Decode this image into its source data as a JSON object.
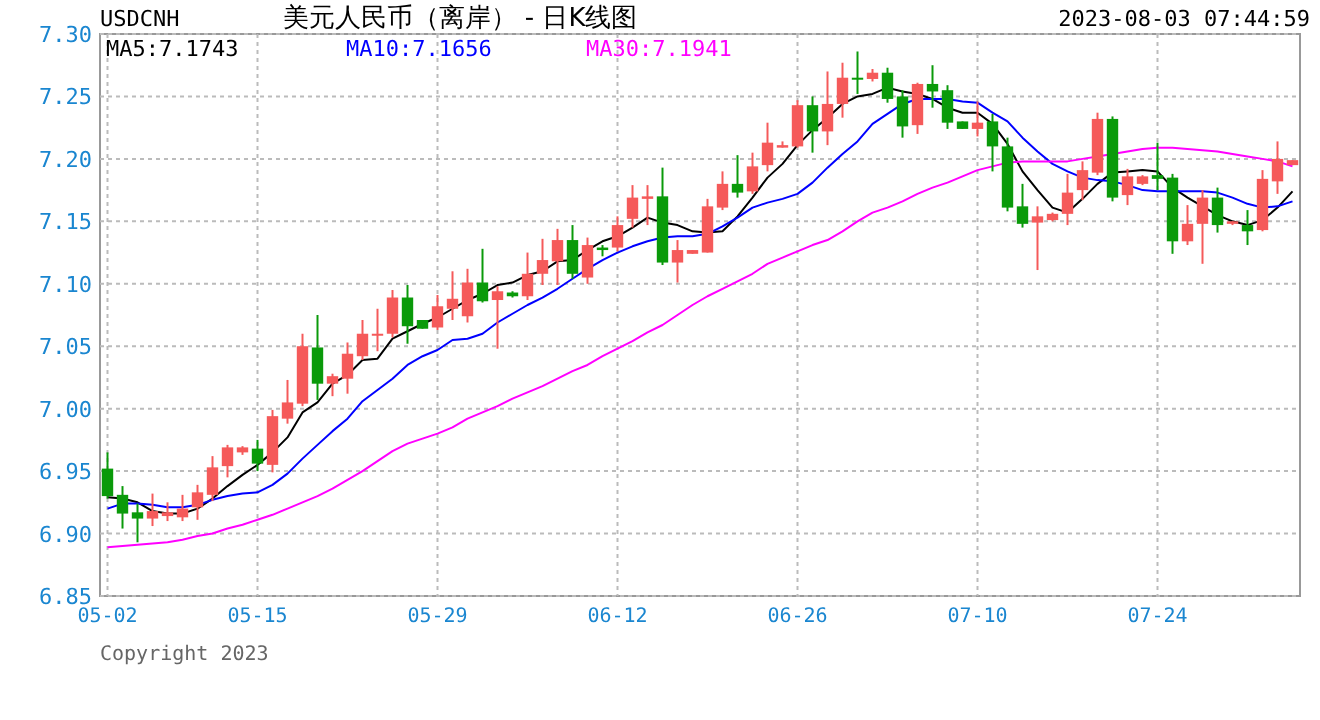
{
  "chart_data": {
    "type": "candlestick",
    "title": "美元人民币（离岸） - 日K线图",
    "annotations": [
      "USDCNH",
      "2023-08-03 07:44:59",
      "Copyright 2023"
    ],
    "categories": [
      "05-02",
      null,
      null,
      null,
      null,
      null,
      null,
      null,
      null,
      null,
      "05-15",
      null,
      null,
      null,
      null,
      null,
      null,
      null,
      null,
      null,
      null,
      null,
      "05-29",
      null,
      null,
      null,
      null,
      null,
      null,
      null,
      null,
      null,
      null,
      null,
      "06-12",
      null,
      null,
      null,
      null,
      null,
      null,
      null,
      null,
      null,
      null,
      null,
      "06-26",
      null,
      null,
      null,
      null,
      null,
      null,
      null,
      null,
      null,
      null,
      null,
      "07-10",
      null,
      null,
      null,
      null,
      null,
      null,
      null,
      null,
      null,
      null,
      null,
      "07-24",
      null,
      null,
      null,
      null,
      null,
      null,
      null,
      null,
      null
    ],
    "ohlc": [
      [
        6.952,
        6.965,
        6.928,
        6.93
      ],
      [
        6.931,
        6.938,
        6.904,
        6.916
      ],
      [
        6.917,
        6.924,
        6.893,
        6.912
      ],
      [
        6.912,
        6.932,
        6.906,
        6.918
      ],
      [
        6.914,
        6.925,
        6.91,
        6.917
      ],
      [
        6.913,
        6.931,
        6.91,
        6.92
      ],
      [
        6.921,
        6.939,
        6.911,
        6.933
      ],
      [
        6.931,
        6.962,
        6.926,
        6.953
      ],
      [
        6.954,
        6.971,
        6.945,
        6.969
      ],
      [
        6.965,
        6.97,
        6.963,
        6.969
      ],
      [
        6.968,
        6.975,
        6.95,
        6.956
      ],
      [
        6.955,
        6.999,
        6.949,
        6.994
      ],
      [
        6.992,
        7.023,
        6.988,
        7.005
      ],
      [
        7.004,
        7.06,
        7.002,
        7.05
      ],
      [
        7.049,
        7.075,
        7.007,
        7.02
      ],
      [
        7.02,
        7.028,
        7.01,
        7.026
      ],
      [
        7.024,
        7.053,
        7.012,
        7.044
      ],
      [
        7.042,
        7.071,
        7.039,
        7.06
      ],
      [
        7.059,
        7.08,
        7.046,
        7.06
      ],
      [
        7.06,
        7.095,
        7.057,
        7.089
      ],
      [
        7.089,
        7.099,
        7.052,
        7.066
      ],
      [
        7.071,
        7.071,
        7.064,
        7.064
      ],
      [
        7.065,
        7.091,
        7.063,
        7.082
      ],
      [
        7.08,
        7.11,
        7.071,
        7.088
      ],
      [
        7.074,
        7.112,
        7.069,
        7.101
      ],
      [
        7.101,
        7.128,
        7.085,
        7.086
      ],
      [
        7.087,
        7.098,
        7.048,
        7.094
      ],
      [
        7.093,
        7.094,
        7.089,
        7.09
      ],
      [
        7.09,
        7.125,
        7.087,
        7.108
      ],
      [
        7.108,
        7.136,
        7.099,
        7.119
      ],
      [
        7.118,
        7.144,
        7.099,
        7.135
      ],
      [
        7.135,
        7.147,
        7.104,
        7.108
      ],
      [
        7.105,
        7.137,
        7.1,
        7.131
      ],
      [
        7.129,
        7.131,
        7.122,
        7.127
      ],
      [
        7.129,
        7.154,
        7.126,
        7.147
      ],
      [
        7.152,
        7.179,
        7.145,
        7.169
      ],
      [
        7.168,
        7.179,
        7.147,
        7.17
      ],
      [
        7.17,
        7.193,
        7.115,
        7.117
      ],
      [
        7.117,
        7.135,
        7.101,
        7.127
      ],
      [
        7.124,
        7.127,
        7.124,
        7.127
      ],
      [
        7.125,
        7.168,
        7.125,
        7.162
      ],
      [
        7.161,
        7.19,
        7.159,
        7.18
      ],
      [
        7.18,
        7.203,
        7.169,
        7.173
      ],
      [
        7.174,
        7.205,
        7.172,
        7.194
      ],
      [
        7.195,
        7.229,
        7.19,
        7.213
      ],
      [
        7.209,
        7.214,
        7.209,
        7.211
      ],
      [
        7.21,
        7.247,
        7.209,
        7.243
      ],
      [
        7.243,
        7.25,
        7.205,
        7.222
      ],
      [
        7.222,
        7.27,
        7.211,
        7.244
      ],
      [
        7.244,
        7.277,
        7.233,
        7.265
      ],
      [
        7.265,
        7.286,
        7.252,
        7.264
      ],
      [
        7.264,
        7.272,
        7.262,
        7.269
      ],
      [
        7.269,
        7.273,
        7.245,
        7.248
      ],
      [
        7.25,
        7.255,
        7.217,
        7.226
      ],
      [
        7.227,
        7.261,
        7.22,
        7.26
      ],
      [
        7.26,
        7.275,
        7.241,
        7.254
      ],
      [
        7.255,
        7.259,
        7.224,
        7.229
      ],
      [
        7.23,
        7.23,
        7.224,
        7.224
      ],
      [
        7.224,
        7.246,
        7.218,
        7.229
      ],
      [
        7.23,
        7.236,
        7.19,
        7.21
      ],
      [
        7.21,
        7.217,
        7.158,
        7.161
      ],
      [
        7.162,
        7.18,
        7.145,
        7.148
      ],
      [
        7.149,
        7.162,
        7.111,
        7.154
      ],
      [
        7.151,
        7.157,
        7.15,
        7.156
      ],
      [
        7.156,
        7.188,
        7.147,
        7.173
      ],
      [
        7.175,
        7.198,
        7.167,
        7.191
      ],
      [
        7.189,
        7.237,
        7.187,
        7.232
      ],
      [
        7.232,
        7.234,
        7.166,
        7.169
      ],
      [
        7.171,
        7.192,
        7.163,
        7.186
      ],
      [
        7.18,
        7.187,
        7.179,
        7.186
      ],
      [
        7.187,
        7.213,
        7.175,
        7.184
      ],
      [
        7.185,
        7.188,
        7.124,
        7.134
      ],
      [
        7.134,
        7.163,
        7.131,
        7.148
      ],
      [
        7.148,
        7.175,
        7.116,
        7.169
      ],
      [
        7.169,
        7.177,
        7.141,
        7.147
      ],
      [
        7.148,
        7.15,
        7.147,
        7.15
      ],
      [
        7.147,
        7.159,
        7.131,
        7.142
      ],
      [
        7.143,
        7.191,
        7.142,
        7.184
      ],
      [
        7.182,
        7.214,
        7.172,
        7.2
      ],
      [
        7.195,
        7.199,
        7.195,
        7.199
      ]
    ],
    "colors": [
      "#0a9a0a",
      "#0a9a0a",
      "#0a9a0a",
      "#f55a5a",
      "#f55a5a",
      "#f55a5a",
      "#f55a5a",
      "#f55a5a",
      "#f55a5a",
      "#f55a5a",
      "#0a9a0a",
      "#f55a5a",
      "#f55a5a",
      "#f55a5a",
      "#0a9a0a",
      "#f55a5a",
      "#f55a5a",
      "#f55a5a",
      "#f55a5a",
      "#f55a5a",
      "#0a9a0a",
      "#0a9a0a",
      "#f55a5a",
      "#f55a5a",
      "#f55a5a",
      "#0a9a0a",
      "#f55a5a",
      "#0a9a0a",
      "#f55a5a",
      "#f55a5a",
      "#f55a5a",
      "#0a9a0a",
      "#f55a5a",
      "#0a9a0a",
      "#f55a5a",
      "#f55a5a",
      "#f55a5a",
      "#0a9a0a",
      "#f55a5a",
      "#f55a5a",
      "#f55a5a",
      "#f55a5a",
      "#0a9a0a",
      "#f55a5a",
      "#f55a5a",
      "#f55a5a",
      "#f55a5a",
      "#0a9a0a",
      "#f55a5a",
      "#f55a5a",
      "#0a9a0a",
      "#f55a5a",
      "#0a9a0a",
      "#0a9a0a",
      "#f55a5a",
      "#0a9a0a",
      "#0a9a0a",
      "#0a9a0a",
      "#f55a5a",
      "#0a9a0a",
      "#0a9a0a",
      "#0a9a0a",
      "#f55a5a",
      "#f55a5a",
      "#f55a5a",
      "#f55a5a",
      "#f55a5a",
      "#0a9a0a",
      "#f55a5a",
      "#f55a5a",
      "#0a9a0a",
      "#0a9a0a",
      "#f55a5a",
      "#f55a5a",
      "#0a9a0a",
      "#f55a5a",
      "#0a9a0a",
      "#f55a5a",
      "#f55a5a",
      "#f55a5a"
    ],
    "series": [
      {
        "type": "line",
        "name": "MA5:7.1743",
        "color": "#000000",
        "values": [
          6.929,
          6.928,
          6.925,
          6.918,
          6.916,
          6.916,
          6.92,
          6.928,
          6.938,
          6.947,
          6.955,
          6.965,
          6.977,
          6.997,
          7.005,
          7.02,
          7.027,
          7.039,
          7.04,
          7.056,
          7.062,
          7.068,
          7.073,
          7.08,
          7.087,
          7.092,
          7.099,
          7.101,
          7.107,
          7.11,
          7.118,
          7.119,
          7.127,
          7.134,
          7.138,
          7.145,
          7.153,
          7.149,
          7.147,
          7.142,
          7.141,
          7.142,
          7.154,
          7.169,
          7.185,
          7.196,
          7.211,
          7.223,
          7.233,
          7.244,
          7.25,
          7.252,
          7.257,
          7.254,
          7.252,
          7.248,
          7.241,
          7.237,
          7.237,
          7.228,
          7.212,
          7.19,
          7.175,
          7.161,
          7.157,
          7.168,
          7.18,
          7.189,
          7.19,
          7.191,
          7.19,
          7.177,
          7.169,
          7.162,
          7.155,
          7.15,
          7.147,
          7.151,
          7.161,
          7.174
        ]
      },
      {
        "type": "line",
        "name": "MA10:7.1656",
        "color": "#0000ff",
        "values": [
          6.92,
          6.924,
          6.924,
          6.923,
          6.921,
          6.921,
          6.923,
          6.927,
          6.93,
          6.932,
          6.933,
          6.939,
          6.948,
          6.96,
          6.971,
          6.982,
          6.992,
          7.006,
          7.015,
          7.024,
          7.035,
          7.042,
          7.047,
          7.055,
          7.056,
          7.06,
          7.069,
          7.076,
          7.083,
          7.089,
          7.096,
          7.104,
          7.112,
          7.119,
          7.125,
          7.13,
          7.134,
          7.137,
          7.138,
          7.138,
          7.14,
          7.146,
          7.153,
          7.161,
          7.165,
          7.168,
          7.172,
          7.181,
          7.193,
          7.204,
          7.214,
          7.228,
          7.236,
          7.244,
          7.248,
          7.248,
          7.248,
          7.246,
          7.245,
          7.237,
          7.23,
          7.217,
          7.206,
          7.196,
          7.19,
          7.185,
          7.183,
          7.182,
          7.179,
          7.175,
          7.174,
          7.174,
          7.174,
          7.174,
          7.173,
          7.169,
          7.164,
          7.161,
          7.162,
          7.166
        ]
      },
      {
        "type": "line",
        "name": "MA30:7.1941",
        "color": "#ff00ff",
        "values": [
          6.889,
          6.89,
          6.891,
          6.892,
          6.893,
          6.895,
          6.898,
          6.9,
          6.904,
          6.907,
          6.911,
          6.915,
          6.92,
          6.925,
          6.93,
          6.936,
          6.943,
          6.95,
          6.958,
          6.966,
          6.972,
          6.976,
          6.98,
          6.985,
          6.992,
          6.997,
          7.002,
          7.008,
          7.013,
          7.018,
          7.024,
          7.03,
          7.035,
          7.042,
          7.048,
          7.054,
          7.061,
          7.067,
          7.075,
          7.083,
          7.09,
          7.096,
          7.102,
          7.108,
          7.116,
          7.121,
          7.126,
          7.131,
          7.135,
          7.142,
          7.15,
          7.157,
          7.161,
          7.166,
          7.172,
          7.177,
          7.181,
          7.186,
          7.191,
          7.194,
          7.197,
          7.198,
          7.198,
          7.198,
          7.198,
          7.2,
          7.202,
          7.204,
          7.206,
          7.208,
          7.209,
          7.209,
          7.208,
          7.207,
          7.206,
          7.204,
          7.202,
          7.2,
          7.198,
          7.194
        ]
      }
    ],
    "ylim": [
      6.85,
      7.3
    ],
    "yticks": [
      {
        "value": 6.85,
        "label": "6.85"
      },
      {
        "value": 6.9,
        "label": "6.90"
      },
      {
        "value": 6.95,
        "label": "6.95"
      },
      {
        "value": 7.0,
        "label": "7.00"
      },
      {
        "value": 7.05,
        "label": "7.05"
      },
      {
        "value": 7.1,
        "label": "7.10"
      },
      {
        "value": 7.15,
        "label": "7.15"
      },
      {
        "value": 7.2,
        "label": "7.20"
      },
      {
        "value": 7.25,
        "label": "7.25"
      },
      {
        "value": 7.3,
        "label": "7.30"
      }
    ],
    "grid": true,
    "legend": "top"
  }
}
